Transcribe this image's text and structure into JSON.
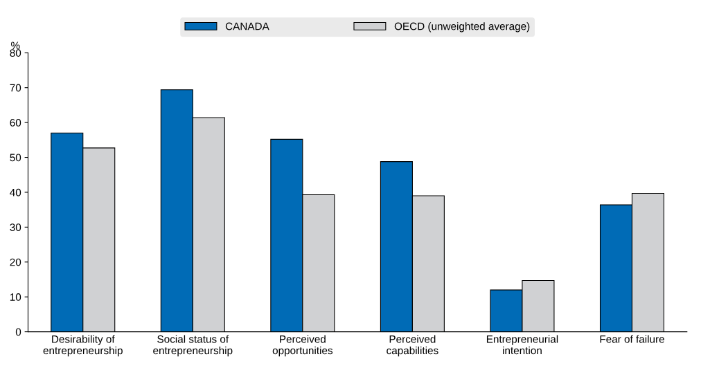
{
  "chart_data": {
    "type": "bar",
    "ylabel": "%",
    "categories": [
      "Desirability of\nentrepreneurship",
      "Social status of\nentrepreneurship",
      "Perceived\nopportunities",
      "Perceived\ncapabilities",
      "Entrepreneurial\nintention",
      "Fear of failure"
    ],
    "series": [
      {
        "name": "CANADA",
        "color": "#006bb6",
        "values": [
          57.0,
          69.4,
          55.2,
          48.8,
          12.0,
          36.4
        ]
      },
      {
        "name": "OECD (unweighted average)",
        "color": "#d0d1d3",
        "values": [
          52.7,
          61.4,
          39.3,
          39.0,
          14.7,
          39.7
        ]
      }
    ],
    "ylim": [
      0,
      80
    ],
    "yticks": [
      0,
      10,
      20,
      30,
      40,
      50,
      60,
      70,
      80
    ],
    "grid": false,
    "legend": "top"
  }
}
